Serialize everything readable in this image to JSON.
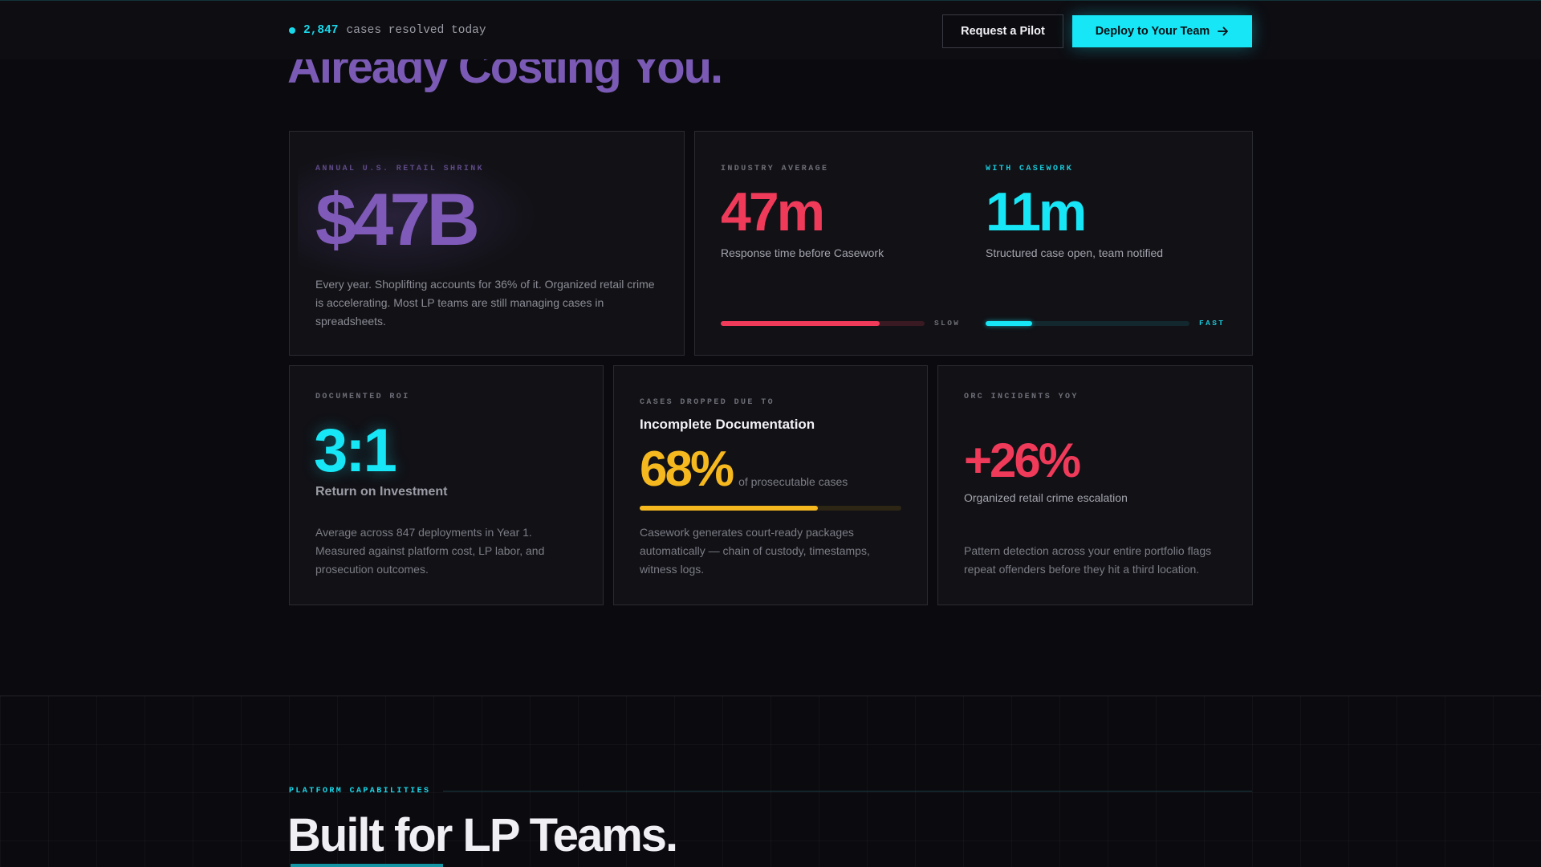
{
  "header": {
    "status_count": "2,847",
    "status_text": "cases resolved today",
    "pilot_button": "Request a Pilot",
    "deploy_button": "Deploy to Your Team"
  },
  "hero": {
    "title": "Already Costing You."
  },
  "shrink_card": {
    "label": "ANNUAL U.S. RETAIL SHRINK",
    "value": "$47B",
    "description": "Every year. Shoplifting accounts for 36% of it. Organized retail crime is accelerating. Most LP teams are still managing cases in spreadsheets."
  },
  "response_card": {
    "industry": {
      "label": "INDUSTRY AVERAGE",
      "value": "47m",
      "caption": "Response time before Casework",
      "bar_label": "SLOW",
      "bar_fill_fraction": 0.78
    },
    "casework": {
      "label": "WITH CASEWORK",
      "value": "11m",
      "caption": "Structured case open, team notified",
      "bar_label": "FAST",
      "bar_fill_fraction": 0.23
    }
  },
  "roi_card": {
    "label": "DOCUMENTED ROI",
    "value": "3:1",
    "subtitle": "Return on Investment",
    "description": "Average across 847 deployments in Year 1. Measured against platform cost, LP labor, and prosecution outcomes."
  },
  "dropped_card": {
    "label": "CASES DROPPED DUE TO",
    "title": "Incomplete Documentation",
    "value": "68%",
    "value_suffix": "of prosecutable cases",
    "bar_fill_fraction": 0.68,
    "description": "Casework generates court-ready packages automatically — chain of custody, timestamps, witness logs."
  },
  "orc_card": {
    "label": "ORC INCIDENTS YOY",
    "value": "+26%",
    "caption": "Organized retail crime escalation",
    "description": "Pattern detection across your entire portfolio flags repeat offenders before they hit a third location."
  },
  "capabilities": {
    "label": "PLATFORM CAPABILITIES",
    "title": "Built for LP Teams."
  },
  "colors": {
    "accent_cyan": "#16e6f5",
    "purple": "#7f5ab8",
    "red": "#f03a5a",
    "amber": "#f5b81e"
  }
}
